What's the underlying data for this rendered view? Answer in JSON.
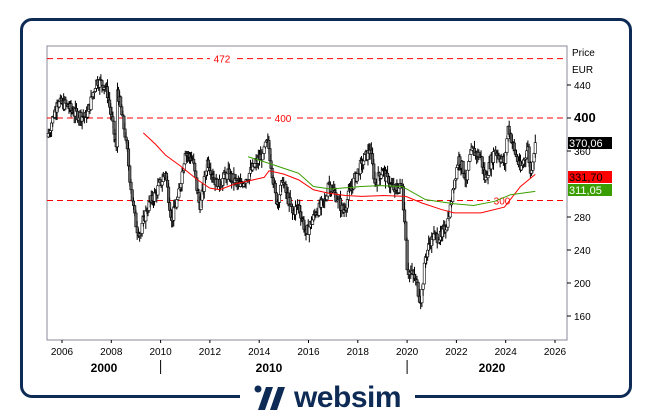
{
  "brand": {
    "name": "websim",
    "color": "#0d2b55"
  },
  "chart_data": {
    "type": "candlestick",
    "ylabel": "Price",
    "unit": "EUR",
    "xlim": [
      2005.4,
      2026.5
    ],
    "ylim": [
      140,
      480
    ],
    "y_ticks": [
      160,
      200,
      240,
      280,
      360,
      400,
      440
    ],
    "x_ticks": [
      "2006",
      "2008",
      "2010",
      "2012",
      "2014",
      "2016",
      "2018",
      "2020",
      "2022",
      "2024",
      "2026"
    ],
    "decades": [
      "2000",
      "2010",
      "2020"
    ],
    "grid": false,
    "levels": [
      {
        "value": 472,
        "label": "472",
        "color": "#ff0000"
      },
      {
        "value": 400,
        "label": "400",
        "color": "#ff0000"
      },
      {
        "value": 300,
        "label": "300",
        "color": "#ff0000"
      }
    ],
    "price": [
      [
        2005.4,
        377
      ],
      [
        2005.8,
        418
      ],
      [
        2006.2,
        416
      ],
      [
        2006.45,
        406
      ],
      [
        2007.0,
        401
      ],
      [
        2007.4,
        446
      ],
      [
        2007.8,
        438
      ],
      [
        2008.2,
        365
      ],
      [
        2008.25,
        434
      ],
      [
        2008.6,
        373
      ],
      [
        2008.8,
        313
      ],
      [
        2009.0,
        268
      ],
      [
        2009.2,
        260
      ],
      [
        2009.4,
        288
      ],
      [
        2009.8,
        309
      ],
      [
        2010.2,
        333
      ],
      [
        2010.45,
        276
      ],
      [
        2010.7,
        304
      ],
      [
        2011.0,
        357
      ],
      [
        2011.3,
        350
      ],
      [
        2011.6,
        289
      ],
      [
        2011.9,
        349
      ],
      [
        2012.3,
        317
      ],
      [
        2012.7,
        333
      ],
      [
        2013.2,
        317
      ],
      [
        2013.6,
        333
      ],
      [
        2014.15,
        357
      ],
      [
        2014.35,
        373
      ],
      [
        2014.7,
        296
      ],
      [
        2014.95,
        322
      ],
      [
        2015.35,
        285
      ],
      [
        2015.6,
        294
      ],
      [
        2015.9,
        260
      ],
      [
        2016.3,
        285
      ],
      [
        2016.7,
        301
      ],
      [
        2016.8,
        321
      ],
      [
        2017.2,
        301
      ],
      [
        2017.4,
        286
      ],
      [
        2017.75,
        317
      ],
      [
        2018.15,
        345
      ],
      [
        2018.5,
        361
      ],
      [
        2018.7,
        321
      ],
      [
        2019.0,
        337
      ],
      [
        2019.25,
        321
      ],
      [
        2019.5,
        313
      ],
      [
        2019.8,
        317
      ],
      [
        2019.95,
        252
      ],
      [
        2020.0,
        216
      ],
      [
        2020.15,
        212
      ],
      [
        2020.35,
        204
      ],
      [
        2020.55,
        176
      ],
      [
        2020.75,
        232
      ],
      [
        2021.0,
        256
      ],
      [
        2021.4,
        256
      ],
      [
        2021.7,
        280
      ],
      [
        2021.85,
        313
      ],
      [
        2022.1,
        353
      ],
      [
        2022.4,
        325
      ],
      [
        2022.6,
        361
      ],
      [
        2023.0,
        353
      ],
      [
        2023.15,
        325
      ],
      [
        2023.55,
        361
      ],
      [
        2023.95,
        345
      ],
      [
        2024.1,
        390
      ],
      [
        2024.35,
        361
      ],
      [
        2024.6,
        337
      ],
      [
        2024.9,
        365
      ],
      [
        2025.0,
        333
      ],
      [
        2025.2,
        370.06
      ]
    ],
    "series": [
      {
        "color": "#ff0000",
        "values": [
          [
            2009.3,
            382
          ],
          [
            2009.8,
            368
          ],
          [
            2010.2,
            355
          ],
          [
            2010.8,
            342
          ],
          [
            2011.5,
            325
          ],
          [
            2012.0,
            315
          ],
          [
            2012.4,
            313
          ],
          [
            2013.0,
            320
          ],
          [
            2013.6,
            324
          ],
          [
            2014.2,
            328
          ],
          [
            2014.4,
            336
          ],
          [
            2015.0,
            332
          ],
          [
            2015.6,
            325
          ],
          [
            2016.2,
            313
          ],
          [
            2016.8,
            309
          ],
          [
            2017.5,
            306
          ],
          [
            2018.15,
            305
          ],
          [
            2019.0,
            306
          ],
          [
            2019.95,
            305
          ],
          [
            2020.6,
            297
          ],
          [
            2021.4,
            289
          ],
          [
            2021.9,
            285
          ],
          [
            2023.0,
            285
          ],
          [
            2023.95,
            292
          ],
          [
            2024.6,
            317
          ],
          [
            2025.2,
            331.7
          ]
        ]
      },
      {
        "color": "#3a9e00",
        "values": [
          [
            2013.55,
            353
          ],
          [
            2014.4,
            345
          ],
          [
            2015.2,
            337
          ],
          [
            2015.6,
            333
          ],
          [
            2016.2,
            317
          ],
          [
            2016.9,
            314
          ],
          [
            2018.15,
            317
          ],
          [
            2018.9,
            318
          ],
          [
            2019.8,
            317
          ],
          [
            2020.75,
            301
          ],
          [
            2021.9,
            296
          ],
          [
            2022.7,
            294
          ],
          [
            2023.55,
            299
          ],
          [
            2024.2,
            307
          ],
          [
            2025.2,
            311.05
          ]
        ]
      }
    ],
    "last_values": [
      {
        "label": "370,06",
        "bg": "#000000",
        "fg": "#ffffff"
      },
      {
        "label": "331,70",
        "bg": "#ff0000",
        "fg": "#000000"
      },
      {
        "label": "311,05",
        "bg": "#3a9e00",
        "fg": "#ffffff"
      }
    ]
  }
}
